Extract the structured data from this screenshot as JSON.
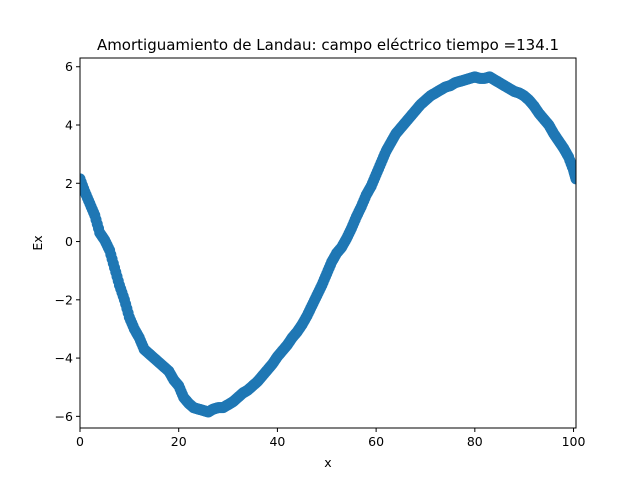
{
  "chart_data": {
    "type": "scatter",
    "title": "Amortiguamiento de Landau: campo eléctrico  tiempo =134.1",
    "xlabel": "x",
    "ylabel": "Ex",
    "xlim": [
      0,
      100.5
    ],
    "ylim": [
      -6.4,
      6.3
    ],
    "xticks": [
      0,
      20,
      40,
      60,
      80,
      100
    ],
    "yticks": [
      -6,
      -4,
      -2,
      0,
      2,
      4,
      6
    ],
    "xtick_labels": [
      "0",
      "20",
      "40",
      "60",
      "80",
      "100"
    ],
    "ytick_labels": [
      "−6",
      "−4",
      "−2",
      "0",
      "2",
      "4",
      "6"
    ],
    "grid": false,
    "series": [
      {
        "color": "#1f77b4",
        "x": [
          0,
          1,
          2,
          3,
          4,
          5,
          6,
          7,
          8,
          9,
          10,
          11,
          12,
          13,
          14,
          15,
          16,
          17,
          18,
          19,
          20,
          21,
          22,
          23,
          24,
          25,
          26,
          27,
          28,
          29,
          30,
          31,
          32,
          33,
          34,
          35,
          36,
          37,
          38,
          39,
          40,
          41,
          42,
          43,
          44,
          45,
          46,
          47,
          48,
          49,
          50,
          51,
          52,
          53,
          54,
          55,
          56,
          57,
          58,
          59,
          60,
          61,
          62,
          63,
          64,
          65,
          66,
          67,
          68,
          69,
          70,
          71,
          72,
          73,
          74,
          75,
          76,
          77,
          78,
          79,
          80,
          81,
          82,
          83,
          84,
          85,
          86,
          87,
          88,
          89,
          90,
          91,
          92,
          93,
          94,
          95,
          96,
          97,
          98,
          99,
          100,
          100.5
        ],
        "y": [
          2.15,
          1.7,
          1.3,
          0.9,
          0.3,
          0.05,
          -0.3,
          -0.9,
          -1.5,
          -2.0,
          -2.6,
          -3.0,
          -3.3,
          -3.7,
          -3.85,
          -4.0,
          -4.15,
          -4.3,
          -4.45,
          -4.75,
          -4.95,
          -5.35,
          -5.55,
          -5.7,
          -5.75,
          -5.8,
          -5.85,
          -5.75,
          -5.7,
          -5.7,
          -5.6,
          -5.5,
          -5.35,
          -5.2,
          -5.1,
          -4.95,
          -4.8,
          -4.6,
          -4.4,
          -4.2,
          -3.95,
          -3.75,
          -3.55,
          -3.3,
          -3.1,
          -2.85,
          -2.55,
          -2.2,
          -1.85,
          -1.5,
          -1.1,
          -0.7,
          -0.4,
          -0.2,
          0.1,
          0.45,
          0.85,
          1.2,
          1.6,
          1.9,
          2.3,
          2.7,
          3.1,
          3.4,
          3.7,
          3.9,
          4.1,
          4.3,
          4.5,
          4.7,
          4.85,
          5.0,
          5.1,
          5.2,
          5.3,
          5.35,
          5.45,
          5.5,
          5.55,
          5.6,
          5.65,
          5.6,
          5.6,
          5.65,
          5.55,
          5.45,
          5.35,
          5.25,
          5.15,
          5.1,
          5.0,
          4.85,
          4.65,
          4.4,
          4.2,
          4.0,
          3.7,
          3.45,
          3.2,
          2.9,
          2.45,
          2.15
        ]
      }
    ]
  }
}
